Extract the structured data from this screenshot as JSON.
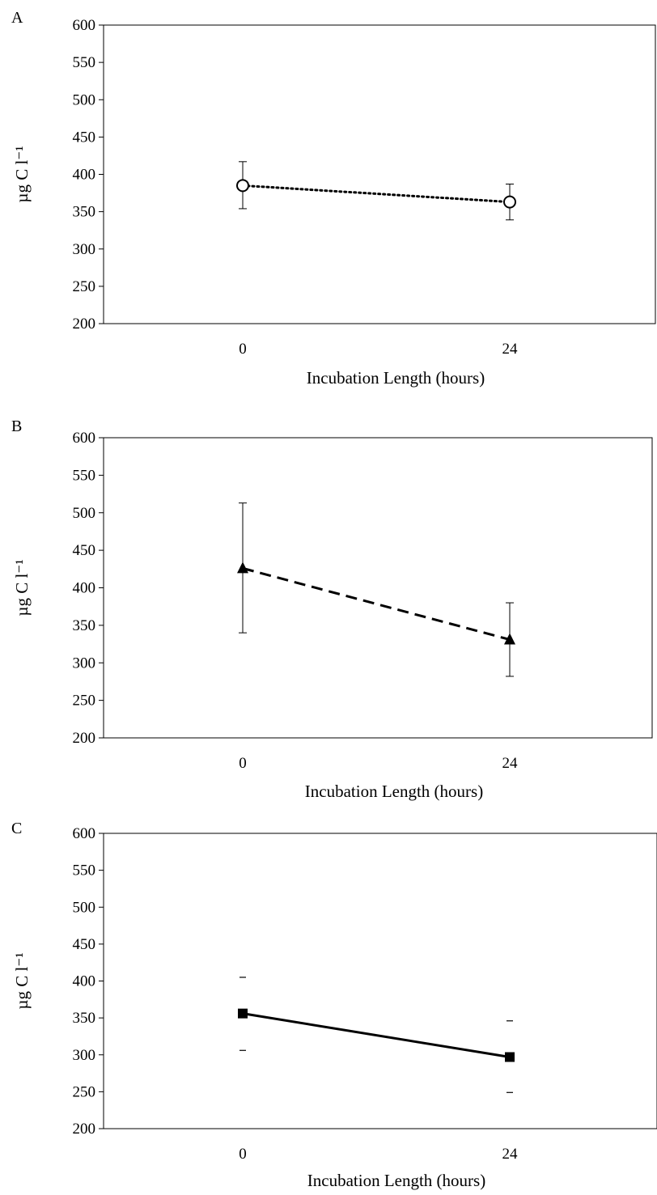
{
  "chart_data": [
    {
      "panel_label": "A",
      "type": "line",
      "line_style": "dotted",
      "marker": "open-circle",
      "x": [
        "0",
        "24"
      ],
      "values": [
        385,
        363
      ],
      "error": [
        [
          354,
          417
        ],
        [
          339,
          387
        ]
      ],
      "xlabel": "Incubation Length (hours)",
      "ylabel": "µg C l⁻¹",
      "ylim": [
        200,
        600
      ],
      "yticks": [
        "200",
        "250",
        "300",
        "350",
        "400",
        "450",
        "500",
        "550",
        "600"
      ],
      "grid": false,
      "legend": "none"
    },
    {
      "panel_label": "B",
      "type": "line",
      "line_style": "dashed",
      "marker": "filled-triangle",
      "x": [
        "0",
        "24"
      ],
      "values": [
        426,
        331
      ],
      "error": [
        [
          340,
          513
        ],
        [
          282,
          380
        ]
      ],
      "xlabel": "Incubation Length (hours)",
      "ylabel": "µg C l⁻¹",
      "ylim": [
        200,
        600
      ],
      "yticks": [
        "200",
        "250",
        "300",
        "350",
        "400",
        "450",
        "500",
        "550",
        "600"
      ],
      "grid": false,
      "legend": "none"
    },
    {
      "panel_label": "C",
      "type": "line",
      "line_style": "solid",
      "marker": "filled-square",
      "x": [
        "0",
        "24"
      ],
      "values": [
        356,
        297
      ],
      "error": [
        [
          306,
          405
        ],
        [
          249,
          346
        ]
      ],
      "xlabel": "Incubation Length (hours)",
      "ylabel": "µg C l⁻¹",
      "ylim": [
        200,
        600
      ],
      "yticks": [
        "200",
        "250",
        "300",
        "350",
        "400",
        "450",
        "500",
        "550",
        "600"
      ],
      "grid": false,
      "legend": "none"
    }
  ]
}
